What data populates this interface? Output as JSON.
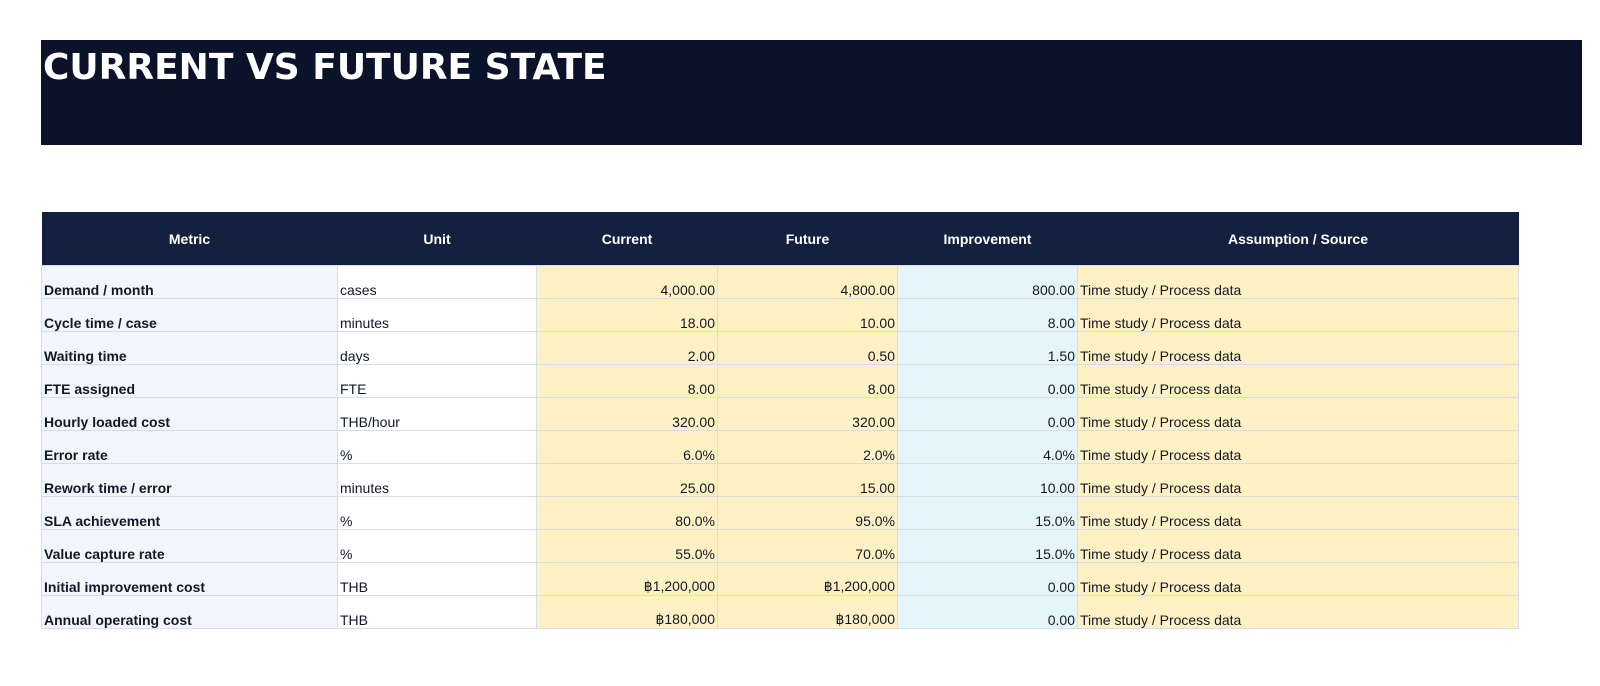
{
  "title": "CURRENT VS FUTURE STATE",
  "colors": {
    "banner_bg": "#0a1329",
    "header_bg": "#13213f",
    "input_fill": "#fff1c4",
    "improvement_fill": "#e6f5fa",
    "metric_fill": "#f2f6fb"
  },
  "table": {
    "headers": [
      "Metric",
      "Unit",
      "Current",
      "Future",
      "Improvement",
      "Assumption / Source"
    ],
    "rows": [
      {
        "metric": "Demand / month",
        "unit": "cases",
        "current": "4,000.00",
        "future": "4,800.00",
        "improvement": "800.00",
        "source": "Time study / Process data"
      },
      {
        "metric": "Cycle time / case",
        "unit": "minutes",
        "current": "18.00",
        "future": "10.00",
        "improvement": "8.00",
        "source": "Time study / Process data"
      },
      {
        "metric": "Waiting time",
        "unit": "days",
        "current": "2.00",
        "future": "0.50",
        "improvement": "1.50",
        "source": "Time study / Process data"
      },
      {
        "metric": "FTE assigned",
        "unit": "FTE",
        "current": "8.00",
        "future": "8.00",
        "improvement": "0.00",
        "source": "Time study / Process data"
      },
      {
        "metric": "Hourly loaded cost",
        "unit": "THB/hour",
        "current": "320.00",
        "future": "320.00",
        "improvement": "0.00",
        "source": "Time study / Process data"
      },
      {
        "metric": "Error rate",
        "unit": "%",
        "current": "6.0%",
        "future": "2.0%",
        "improvement": "4.0%",
        "source": "Time study / Process data"
      },
      {
        "metric": "Rework time / error",
        "unit": "minutes",
        "current": "25.00",
        "future": "15.00",
        "improvement": "10.00",
        "source": "Time study / Process data"
      },
      {
        "metric": "SLA achievement",
        "unit": "%",
        "current": "80.0%",
        "future": "95.0%",
        "improvement": "15.0%",
        "source": "Time study / Process data"
      },
      {
        "metric": "Value capture rate",
        "unit": "%",
        "current": "55.0%",
        "future": "70.0%",
        "improvement": "15.0%",
        "source": "Time study / Process data"
      },
      {
        "metric": "Initial improvement cost",
        "unit": "THB",
        "current": "฿1,200,000",
        "future": "฿1,200,000",
        "improvement": "0.00",
        "source": "Time study / Process data"
      },
      {
        "metric": "Annual operating cost",
        "unit": "THB",
        "current": "฿180,000",
        "future": "฿180,000",
        "improvement": "0.00",
        "source": "Time study / Process data"
      }
    ]
  }
}
